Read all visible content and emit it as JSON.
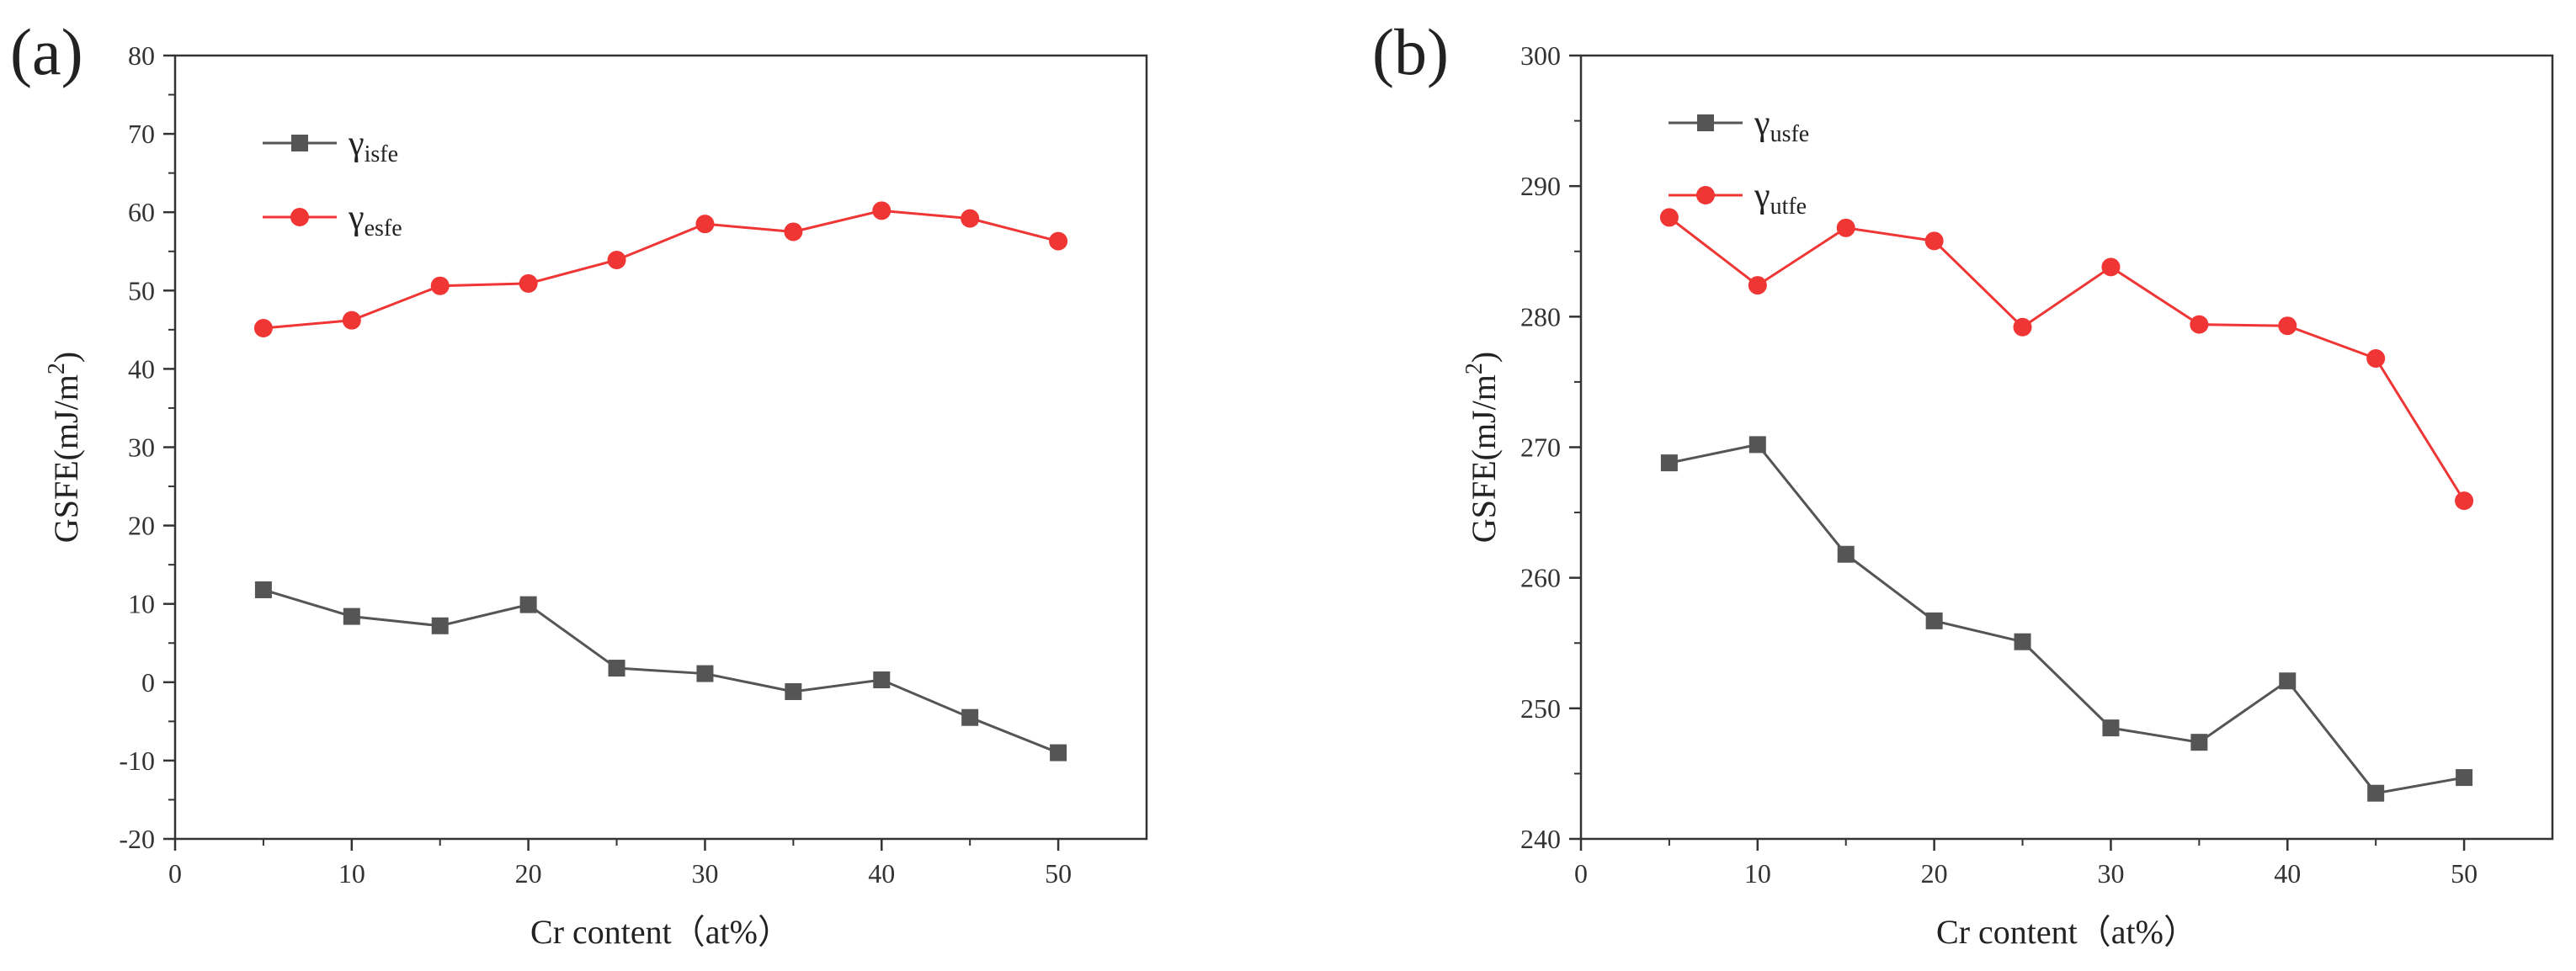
{
  "chart_data": [
    {
      "type": "line",
      "panel_label": "(a)",
      "xlabel": "Cr content（at%）",
      "ylabel_main": "GSFE(mJ/m",
      "ylabel_sup": "2",
      "ylabel_end": ")",
      "xlim": [
        0,
        55
      ],
      "ylim": [
        -20,
        80
      ],
      "xticks": [
        0,
        10,
        20,
        30,
        40,
        50
      ],
      "yticks": [
        -20,
        -10,
        0,
        10,
        20,
        30,
        40,
        50,
        60,
        70,
        80
      ],
      "x": [
        5,
        10,
        15,
        20,
        25,
        30,
        35,
        40,
        45,
        50
      ],
      "legend_position": "top-left",
      "series": [
        {
          "name": "γisfe",
          "symbol": "γ",
          "subscript": "isfe",
          "marker": "square",
          "color": "#555555",
          "values": [
            11.8,
            8.4,
            7.2,
            9.9,
            1.8,
            1.1,
            -1.2,
            0.3,
            -4.5,
            -9.0
          ]
        },
        {
          "name": "γesfe",
          "symbol": "γ",
          "subscript": "esfe",
          "marker": "circle",
          "color": "#f03535",
          "values": [
            45.2,
            46.2,
            50.6,
            50.9,
            53.9,
            58.5,
            57.5,
            60.2,
            59.2,
            56.3
          ]
        }
      ]
    },
    {
      "type": "line",
      "panel_label": "(b)",
      "xlabel": "Cr content（at%）",
      "ylabel_main": "GSFE(mJ/m",
      "ylabel_sup": "2",
      "ylabel_end": ")",
      "xlim": [
        0,
        55
      ],
      "ylim": [
        240,
        300
      ],
      "xticks": [
        0,
        10,
        20,
        30,
        40,
        50
      ],
      "yticks": [
        240,
        250,
        260,
        270,
        280,
        290,
        300
      ],
      "x": [
        5,
        10,
        15,
        20,
        25,
        30,
        35,
        40,
        45,
        50
      ],
      "legend_position": "top-left",
      "series": [
        {
          "name": "γusfe",
          "symbol": "γ",
          "subscript": "usfe",
          "marker": "square",
          "color": "#555555",
          "values": [
            268.8,
            270.2,
            261.8,
            256.7,
            255.1,
            248.5,
            247.4,
            252.1,
            243.5,
            244.7
          ]
        },
        {
          "name": "γutfe",
          "symbol": "γ",
          "subscript": "utfe",
          "marker": "circle",
          "color": "#f03535",
          "values": [
            287.6,
            282.4,
            286.8,
            285.8,
            279.2,
            283.8,
            279.4,
            279.3,
            276.8,
            265.9
          ]
        }
      ]
    }
  ]
}
